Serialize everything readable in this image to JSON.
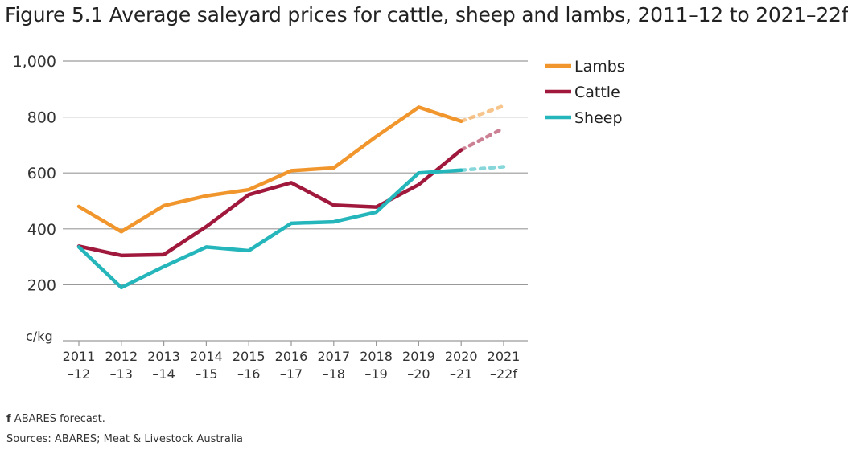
{
  "chart_data": {
    "type": "line",
    "title": "Figure 5.1 Average saleyard prices for cattle, sheep and lambs, 2011–12 to 2021–22f",
    "ylabel": "c/kg",
    "ylim": [
      0,
      1000
    ],
    "yticks": [
      200,
      400,
      600,
      800,
      1000
    ],
    "ytick_labels": [
      "200",
      "400",
      "600",
      "800",
      "1,000"
    ],
    "categories": [
      [
        "2011",
        "–12"
      ],
      [
        "2012",
        "–13"
      ],
      [
        "2013",
        "–14"
      ],
      [
        "2014",
        "–15"
      ],
      [
        "2015",
        "–16"
      ],
      [
        "2016",
        "–17"
      ],
      [
        "2017",
        "–18"
      ],
      [
        "2018",
        "–19"
      ],
      [
        "2019",
        "–20"
      ],
      [
        "2020",
        "–21"
      ],
      [
        "2021",
        "–22f"
      ]
    ],
    "forecast_from_index": 9,
    "grid": true,
    "legend_position": "top-right",
    "series": [
      {
        "name": "Lambs",
        "color": "#f0962d",
        "values": [
          480,
          390,
          483,
          518,
          540,
          608,
          618,
          730,
          835,
          785,
          840
        ]
      },
      {
        "name": "Cattle",
        "color": "#a0183c",
        "values": [
          338,
          305,
          308,
          408,
          522,
          565,
          485,
          478,
          558,
          682,
          760
        ]
      },
      {
        "name": "Sheep",
        "color": "#25b6bb",
        "values": [
          335,
          190,
          265,
          335,
          322,
          420,
          425,
          460,
          600,
          610,
          622
        ]
      }
    ]
  },
  "footnote": {
    "marker": "f",
    "text": "ABARES forecast."
  },
  "sources": "Sources: ABARES; Meat & Livestock Australia"
}
